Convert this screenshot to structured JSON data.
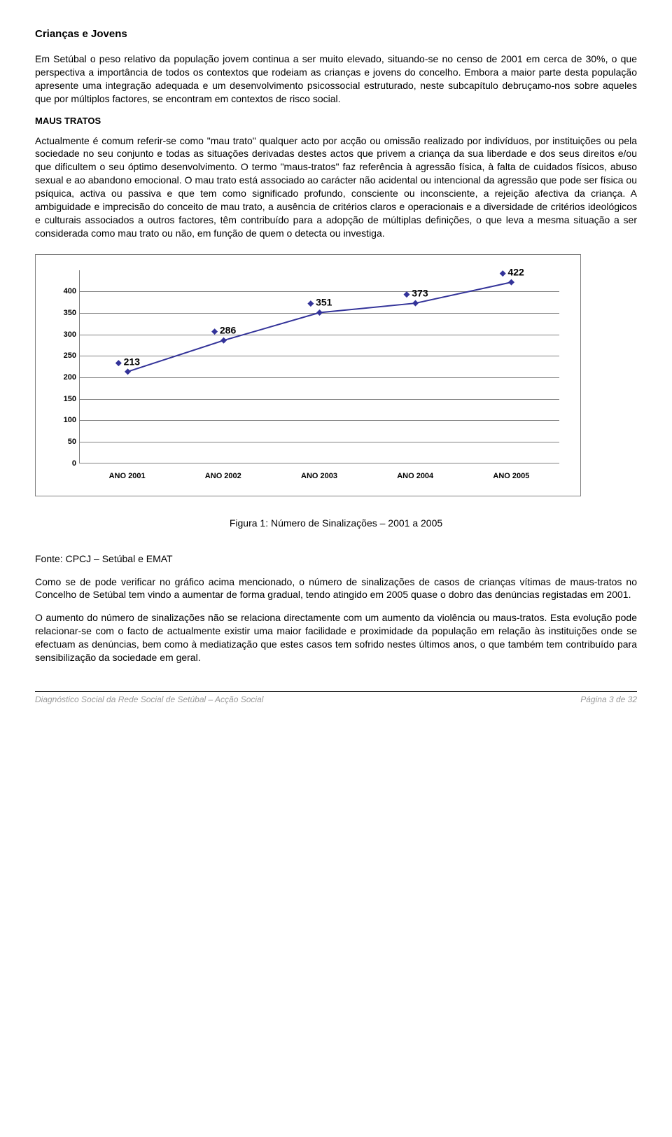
{
  "title": "Crianças e Jovens",
  "para1": "Em Setúbal o peso relativo da população jovem continua a ser muito elevado, situando-se no censo de 2001 em cerca de 30%, o que perspectiva a importância de todos os contextos que rodeiam as crianças e jovens do concelho. Embora a maior parte desta população apresente uma integração adequada e um desenvolvimento psicossocial estruturado, neste subcapítulo debruçamo-nos sobre aqueles que por múltiplos factores, se encontram em contextos de risco social.",
  "subheading": "MAUS TRATOS",
  "para2": "Actualmente é comum referir-se como \"mau trato\" qualquer acto por acção ou omissão realizado por indivíduos, por instituições ou pela sociedade no seu conjunto e todas as situações derivadas destes actos que privem a criança da sua liberdade e dos seus direitos e/ou que dificultem o seu óptimo desenvolvimento. O termo \"maus-tratos\" faz referência à agressão física, à falta de cuidados físicos, abuso sexual e ao abandono emocional. O mau trato está associado ao carácter não acidental ou intencional da agressão que pode ser física ou psíquica, activa ou passiva e que tem como significado profundo, consciente ou inconsciente, a rejeição afectiva da criança. A ambiguidade e imprecisão do conceito de mau trato, a ausência de critérios claros e operacionais e a diversidade de critérios ideológicos e culturais associados a outros factores, têm contribuído para a adopção de múltiplas definições, o que leva a mesma situação a ser considerada como mau trato ou não, em função de quem o detecta ou investiga.",
  "chart": {
    "type": "line",
    "categories": [
      "ANO 2001",
      "ANO 2002",
      "ANO 2003",
      "ANO 2004",
      "ANO 2005"
    ],
    "values": [
      213,
      286,
      351,
      373,
      422
    ],
    "line_color": "#333399",
    "marker_color": "#333399",
    "marker_symbol": "◆",
    "grid_color": "#808080",
    "ylim": [
      0,
      400
    ],
    "ytick_step": 50,
    "tick_fontsize": 11,
    "label_fontsize": 14,
    "background_color": "#ffffff"
  },
  "caption": "Figura 1: Número de Sinalizações – 2001 a 2005",
  "source": "Fonte: CPCJ – Setúbal e EMAT",
  "para3": "Como se de pode verificar no gráfico acima mencionado, o número de sinalizações de casos de crianças vítimas de maus-tratos no Concelho de Setúbal tem vindo a aumentar de forma gradual, tendo atingido em 2005 quase o dobro das denúncias registadas em 2001.",
  "para4": "O aumento do número de sinalizações não se relaciona directamente com um aumento da violência ou maus-tratos. Esta evolução pode relacionar-se com o facto de actualmente existir uma maior facilidade e proximidade da população em relação às instituições onde se efectuam as denúncias, bem como à mediatização que estes casos tem sofrido nestes últimos anos, o que também tem contribuído para sensibilização da sociedade em geral.",
  "footer_left": "Diagnóstico Social da Rede Social de Setúbal – Acção Social",
  "footer_right": "Página 3 de 32"
}
